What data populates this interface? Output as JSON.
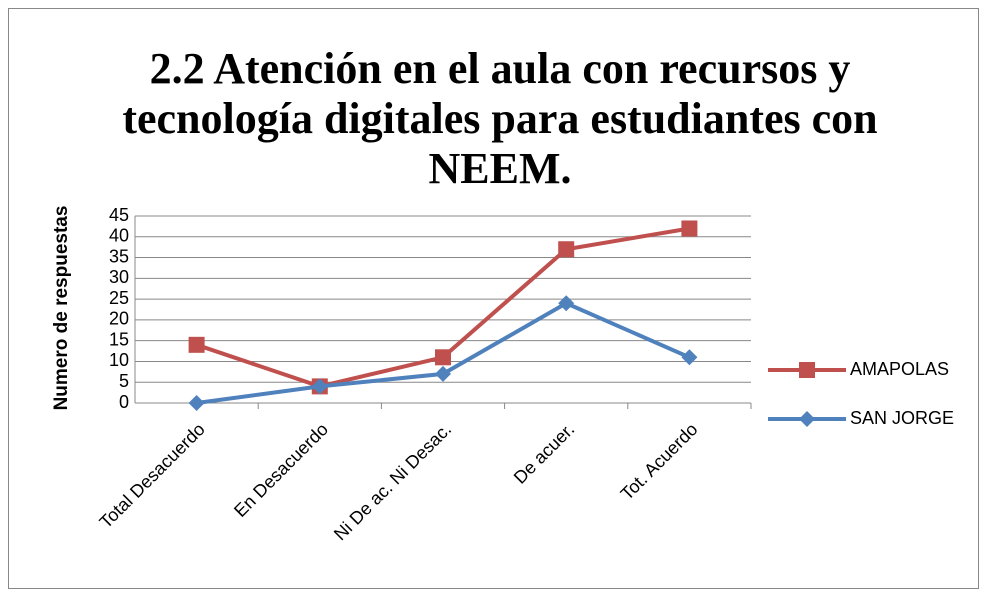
{
  "chart_data": {
    "type": "line",
    "title": "2.2 Atención en el aula con recursos y tecnología digitales para estudiantes con NEEM.",
    "y_label": "Numero de respuestas",
    "categories": [
      "Total Desacuerdo",
      "En Desacuerdo",
      "Ni De ac. Ni Desac.",
      "De acuer.",
      "Tot. Acuerdo"
    ],
    "series": [
      {
        "name": "AMAPOLAS",
        "color": "#c0504d",
        "marker": "square",
        "values": [
          14,
          4,
          11,
          37,
          42
        ]
      },
      {
        "name": "SAN JORGE",
        "color": "#4f81bd",
        "marker": "diamond",
        "values": [
          0,
          4,
          7,
          24,
          11
        ]
      }
    ],
    "ylim": [
      0,
      45
    ],
    "yticks": [
      0,
      5,
      10,
      15,
      20,
      25,
      30,
      35,
      40,
      45
    ],
    "grid": true,
    "legend": "right"
  }
}
